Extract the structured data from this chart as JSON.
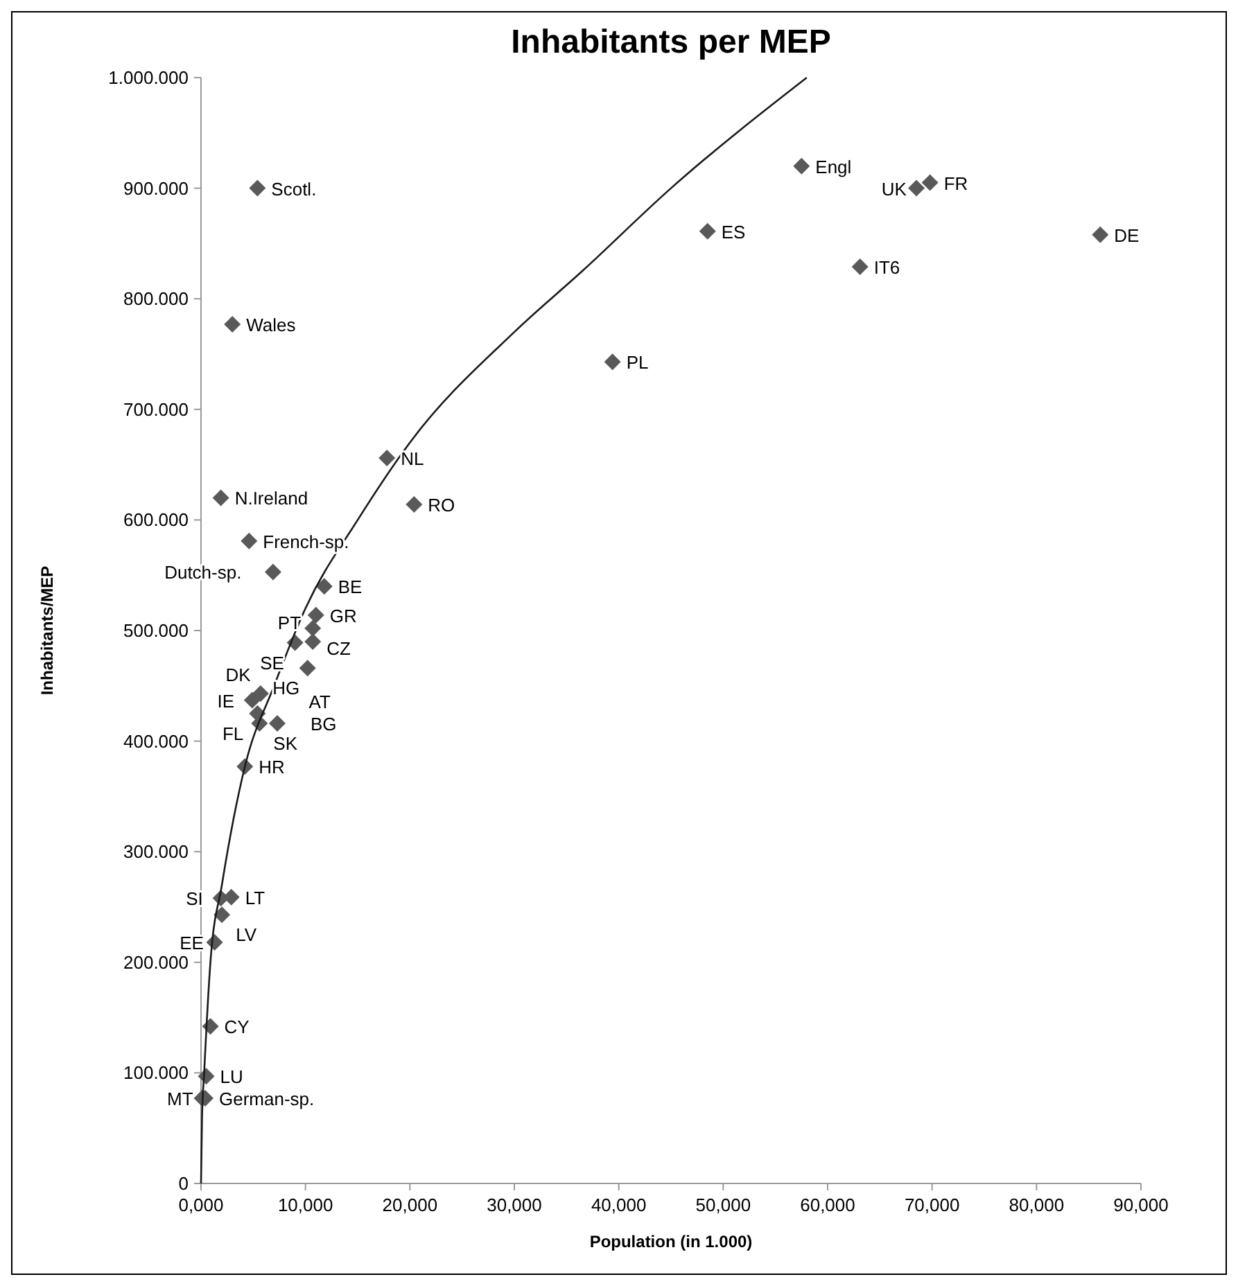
{
  "chart_data": {
    "type": "scatter",
    "title": "Inhabitants per MEP",
    "xlabel": "Population (in 1.000)",
    "ylabel": "Inhabitants/MEP",
    "xlim": [
      0,
      90
    ],
    "ylim": [
      0,
      1000000
    ],
    "xticks": [
      {
        "value": 0,
        "label": "0,000"
      },
      {
        "value": 10,
        "label": "10,000"
      },
      {
        "value": 20,
        "label": "20,000"
      },
      {
        "value": 30,
        "label": "30,000"
      },
      {
        "value": 40,
        "label": "40,000"
      },
      {
        "value": 50,
        "label": "50,000"
      },
      {
        "value": 60,
        "label": "60,000"
      },
      {
        "value": 70,
        "label": "70,000"
      },
      {
        "value": 80,
        "label": "80,000"
      },
      {
        "value": 90,
        "label": "90,000"
      }
    ],
    "yticks": [
      0,
      {
        "value": 100000,
        "label": "100.000"
      },
      {
        "value": 200000,
        "label": "200.000"
      },
      {
        "value": 300000,
        "label": "300.000"
      },
      {
        "value": 400000,
        "label": "400.000"
      },
      {
        "value": 500000,
        "label": "500.000"
      },
      {
        "value": 600000,
        "label": "600.000"
      },
      {
        "value": 700000,
        "label": "700.000"
      },
      {
        "value": 800000,
        "label": "800.000"
      },
      {
        "value": 900000,
        "label": "900.000"
      },
      {
        "value": 1000000,
        "label": "1.000.000"
      }
    ],
    "grid": false,
    "marker": "diamond",
    "series": [
      {
        "color": "#595959",
        "x": [
          5.4,
          3.0,
          1.9,
          17.8,
          20.4,
          4.6,
          6.9,
          11.8,
          11.0,
          10.7,
          9.0,
          10.7,
          10.2,
          5.7,
          4.9,
          5.4,
          5.6,
          7.3,
          4.2,
          2.9,
          1.9,
          2.0,
          1.3,
          0.9,
          0.5,
          0.4,
          0.1,
          57.5,
          69.8,
          68.5,
          48.5,
          63.1,
          86.1,
          39.4
        ],
        "values": [
          900000,
          777000,
          620000,
          656000,
          614000,
          581000,
          553000,
          540000,
          514000,
          502000,
          489000,
          490000,
          466000,
          443000,
          437000,
          425000,
          416000,
          416000,
          377000,
          259000,
          258000,
          243000,
          218000,
          142000,
          97000,
          77000,
          77000,
          920000,
          905000,
          900000,
          861000,
          829000,
          858000,
          743000
        ]
      },
      {
        "type": "line",
        "color": "#1a1a1a",
        "marker": "none",
        "line_style": "solid",
        "x": [
          0,
          0.1,
          0.3,
          0.9,
          2.0,
          4.2,
          7.0,
          10.0,
          15.0,
          20.0,
          30.0,
          36.5,
          45.0,
          58.0
        ],
        "values": [
          0,
          60000,
          100000,
          200000,
          270000,
          377000,
          450000,
          520000,
          600000,
          670000,
          770000,
          825000,
          900000,
          1000000
        ]
      }
    ],
    "annotations": [
      {
        "text": "Scotl.",
        "x": 5.4,
        "y": 900000
      },
      {
        "text": "Wales",
        "x": 3.0,
        "y": 777000
      },
      {
        "text": "N.Ireland",
        "x": 1.9,
        "y": 620000
      },
      {
        "text": "French-sp.",
        "x": 4.6,
        "y": 581000
      },
      {
        "text": "Dutch-sp.",
        "x": 6.9,
        "y": 553000
      },
      {
        "text": "NL",
        "x": 17.8,
        "y": 656000
      },
      {
        "text": "RO",
        "x": 20.4,
        "y": 614000
      },
      {
        "text": "BE",
        "x": 11.8,
        "y": 540000
      },
      {
        "text": "GR",
        "x": 11.0,
        "y": 514000
      },
      {
        "text": "CZ",
        "x": 10.7,
        "y": 502000
      },
      {
        "text": "PT",
        "x": 10.7,
        "y": 490000
      },
      {
        "text": "SE",
        "x": 9.0,
        "y": 489000
      },
      {
        "text": "AT",
        "x": 9.0,
        "y": 489000
      },
      {
        "text": "HG",
        "x": 10.2,
        "y": 466000
      },
      {
        "text": "DK",
        "x": 5.7,
        "y": 443000
      },
      {
        "text": "IE",
        "x": 4.9,
        "y": 437000
      },
      {
        "text": "FL",
        "x": 5.4,
        "y": 425000
      },
      {
        "text": "SK",
        "x": 5.6,
        "y": 416000
      },
      {
        "text": "BG",
        "x": 7.3,
        "y": 416000
      },
      {
        "text": "HR",
        "x": 4.2,
        "y": 377000
      },
      {
        "text": "LT",
        "x": 2.9,
        "y": 259000
      },
      {
        "text": "SI",
        "x": 1.9,
        "y": 258000
      },
      {
        "text": "LV",
        "x": 2.0,
        "y": 243000
      },
      {
        "text": "EE",
        "x": 1.3,
        "y": 218000
      },
      {
        "text": "CY",
        "x": 0.9,
        "y": 142000
      },
      {
        "text": "LU",
        "x": 0.5,
        "y": 97000
      },
      {
        "text": "German-sp.",
        "x": 0.4,
        "y": 77000
      },
      {
        "text": "MT",
        "x": 0.1,
        "y": 77000
      },
      {
        "text": "Engl",
        "x": 57.5,
        "y": 920000
      },
      {
        "text": "FR",
        "x": 69.8,
        "y": 905000
      },
      {
        "text": "UK",
        "x": 68.5,
        "y": 900000
      },
      {
        "text": "ES",
        "x": 48.5,
        "y": 861000
      },
      {
        "text": "IT6",
        "x": 63.1,
        "y": 829000
      },
      {
        "text": "DE",
        "x": 86.1,
        "y": 858000
      },
      {
        "text": "PL",
        "x": 39.4,
        "y": 743000
      }
    ]
  }
}
